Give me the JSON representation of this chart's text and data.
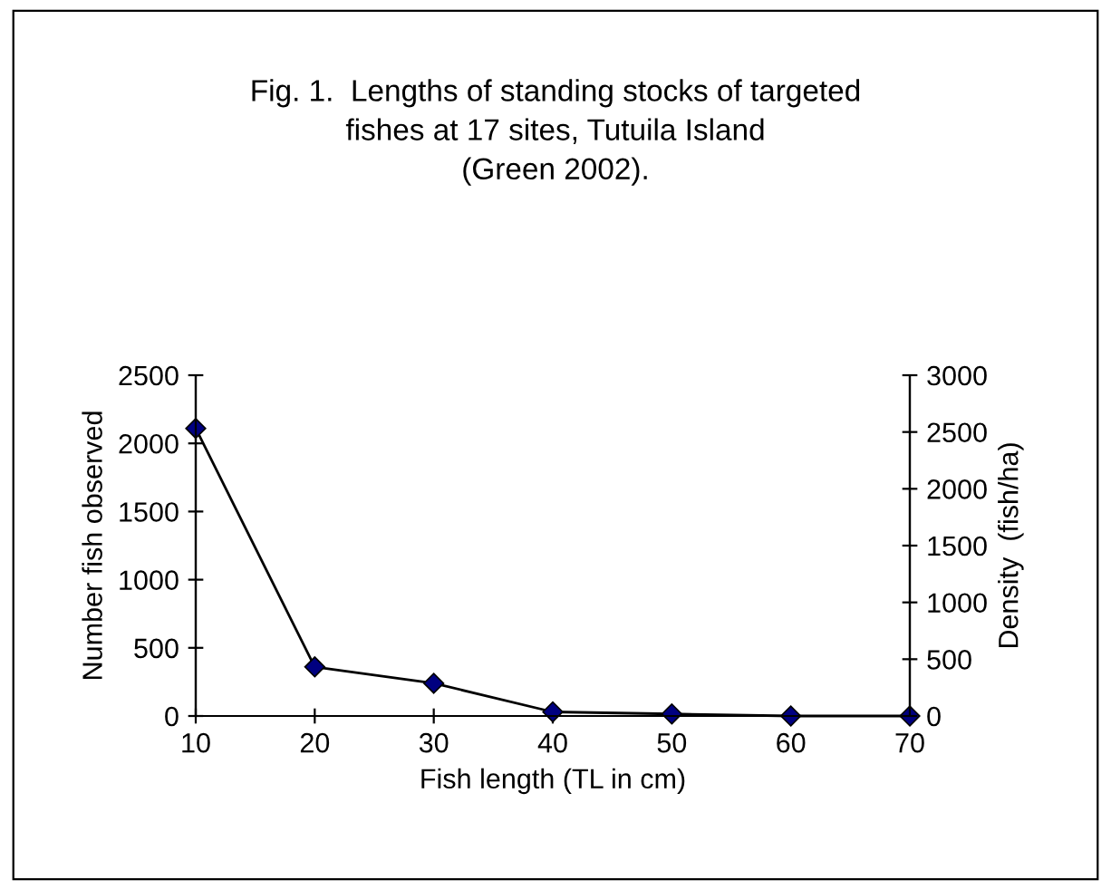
{
  "chart_data": {
    "type": "line",
    "title": "Fig. 1.  Lengths of standing stocks of targeted\nfishes at 17 sites, Tutuila Island\n(Green 2002).",
    "xlabel": "Fish length (TL in cm)",
    "ylabel": "Number fish observed",
    "y2label": "Density  (fish/ha)",
    "categories": [
      "10",
      "20",
      "30",
      "40",
      "50",
      "60",
      "70"
    ],
    "series": [
      {
        "color": "#000080",
        "values": [
          2110,
          360,
          240,
          30,
          15,
          0,
          0
        ]
      }
    ],
    "ylim": [
      0,
      2500
    ],
    "yticks": [
      0,
      500,
      1000,
      1500,
      2000,
      2500
    ],
    "y2lim": [
      0,
      3000
    ],
    "y2ticks": [
      0,
      500,
      1000,
      1500,
      2000,
      2500,
      3000
    ],
    "marker": "diamond",
    "line_style": "solid",
    "grid": false,
    "legend": false
  }
}
